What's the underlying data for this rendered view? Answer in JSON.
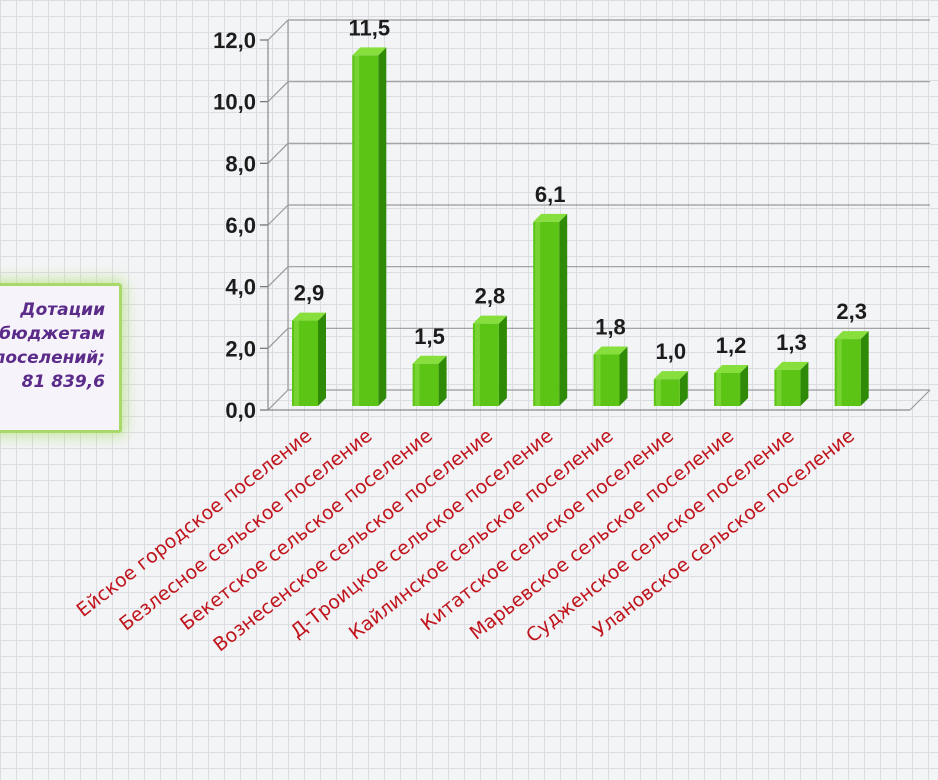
{
  "side_box": {
    "lines": [
      "Дотации",
      "бюджетам",
      "поселений;",
      "81 839,6"
    ]
  },
  "chart_data": {
    "type": "bar",
    "categories": [
      "Ейское городское поселение",
      "Безлесное сельское поселение",
      "Бекетское сельское поселение",
      "Вознесенское сельское поселение",
      "Д-Троицкое сельское поселение",
      "Кайлинское сельское поселение",
      "Китатское сельское поселение",
      "Марьевское сельское поселение",
      "Судженское сельское поселение",
      "Улановское сельское поселение"
    ],
    "values": [
      2.9,
      11.5,
      1.5,
      2.8,
      6.1,
      1.8,
      1.0,
      1.2,
      1.3,
      2.3
    ],
    "data_labels": [
      "2,9",
      "11,5",
      "1,5",
      "2,8",
      "6,1",
      "1,8",
      "1,0",
      "1,2",
      "1,3",
      "2,3"
    ],
    "y_ticks": [
      "0,0",
      "2,0",
      "4,0",
      "6,0",
      "8,0",
      "10,0",
      "12,0"
    ],
    "ylim": [
      0,
      12
    ],
    "grid": true,
    "bar_color": "#5cc414",
    "bar_side_color": "#2f8a08",
    "bar_top_color": "#86df3c",
    "label_color": "#c0141c"
  }
}
